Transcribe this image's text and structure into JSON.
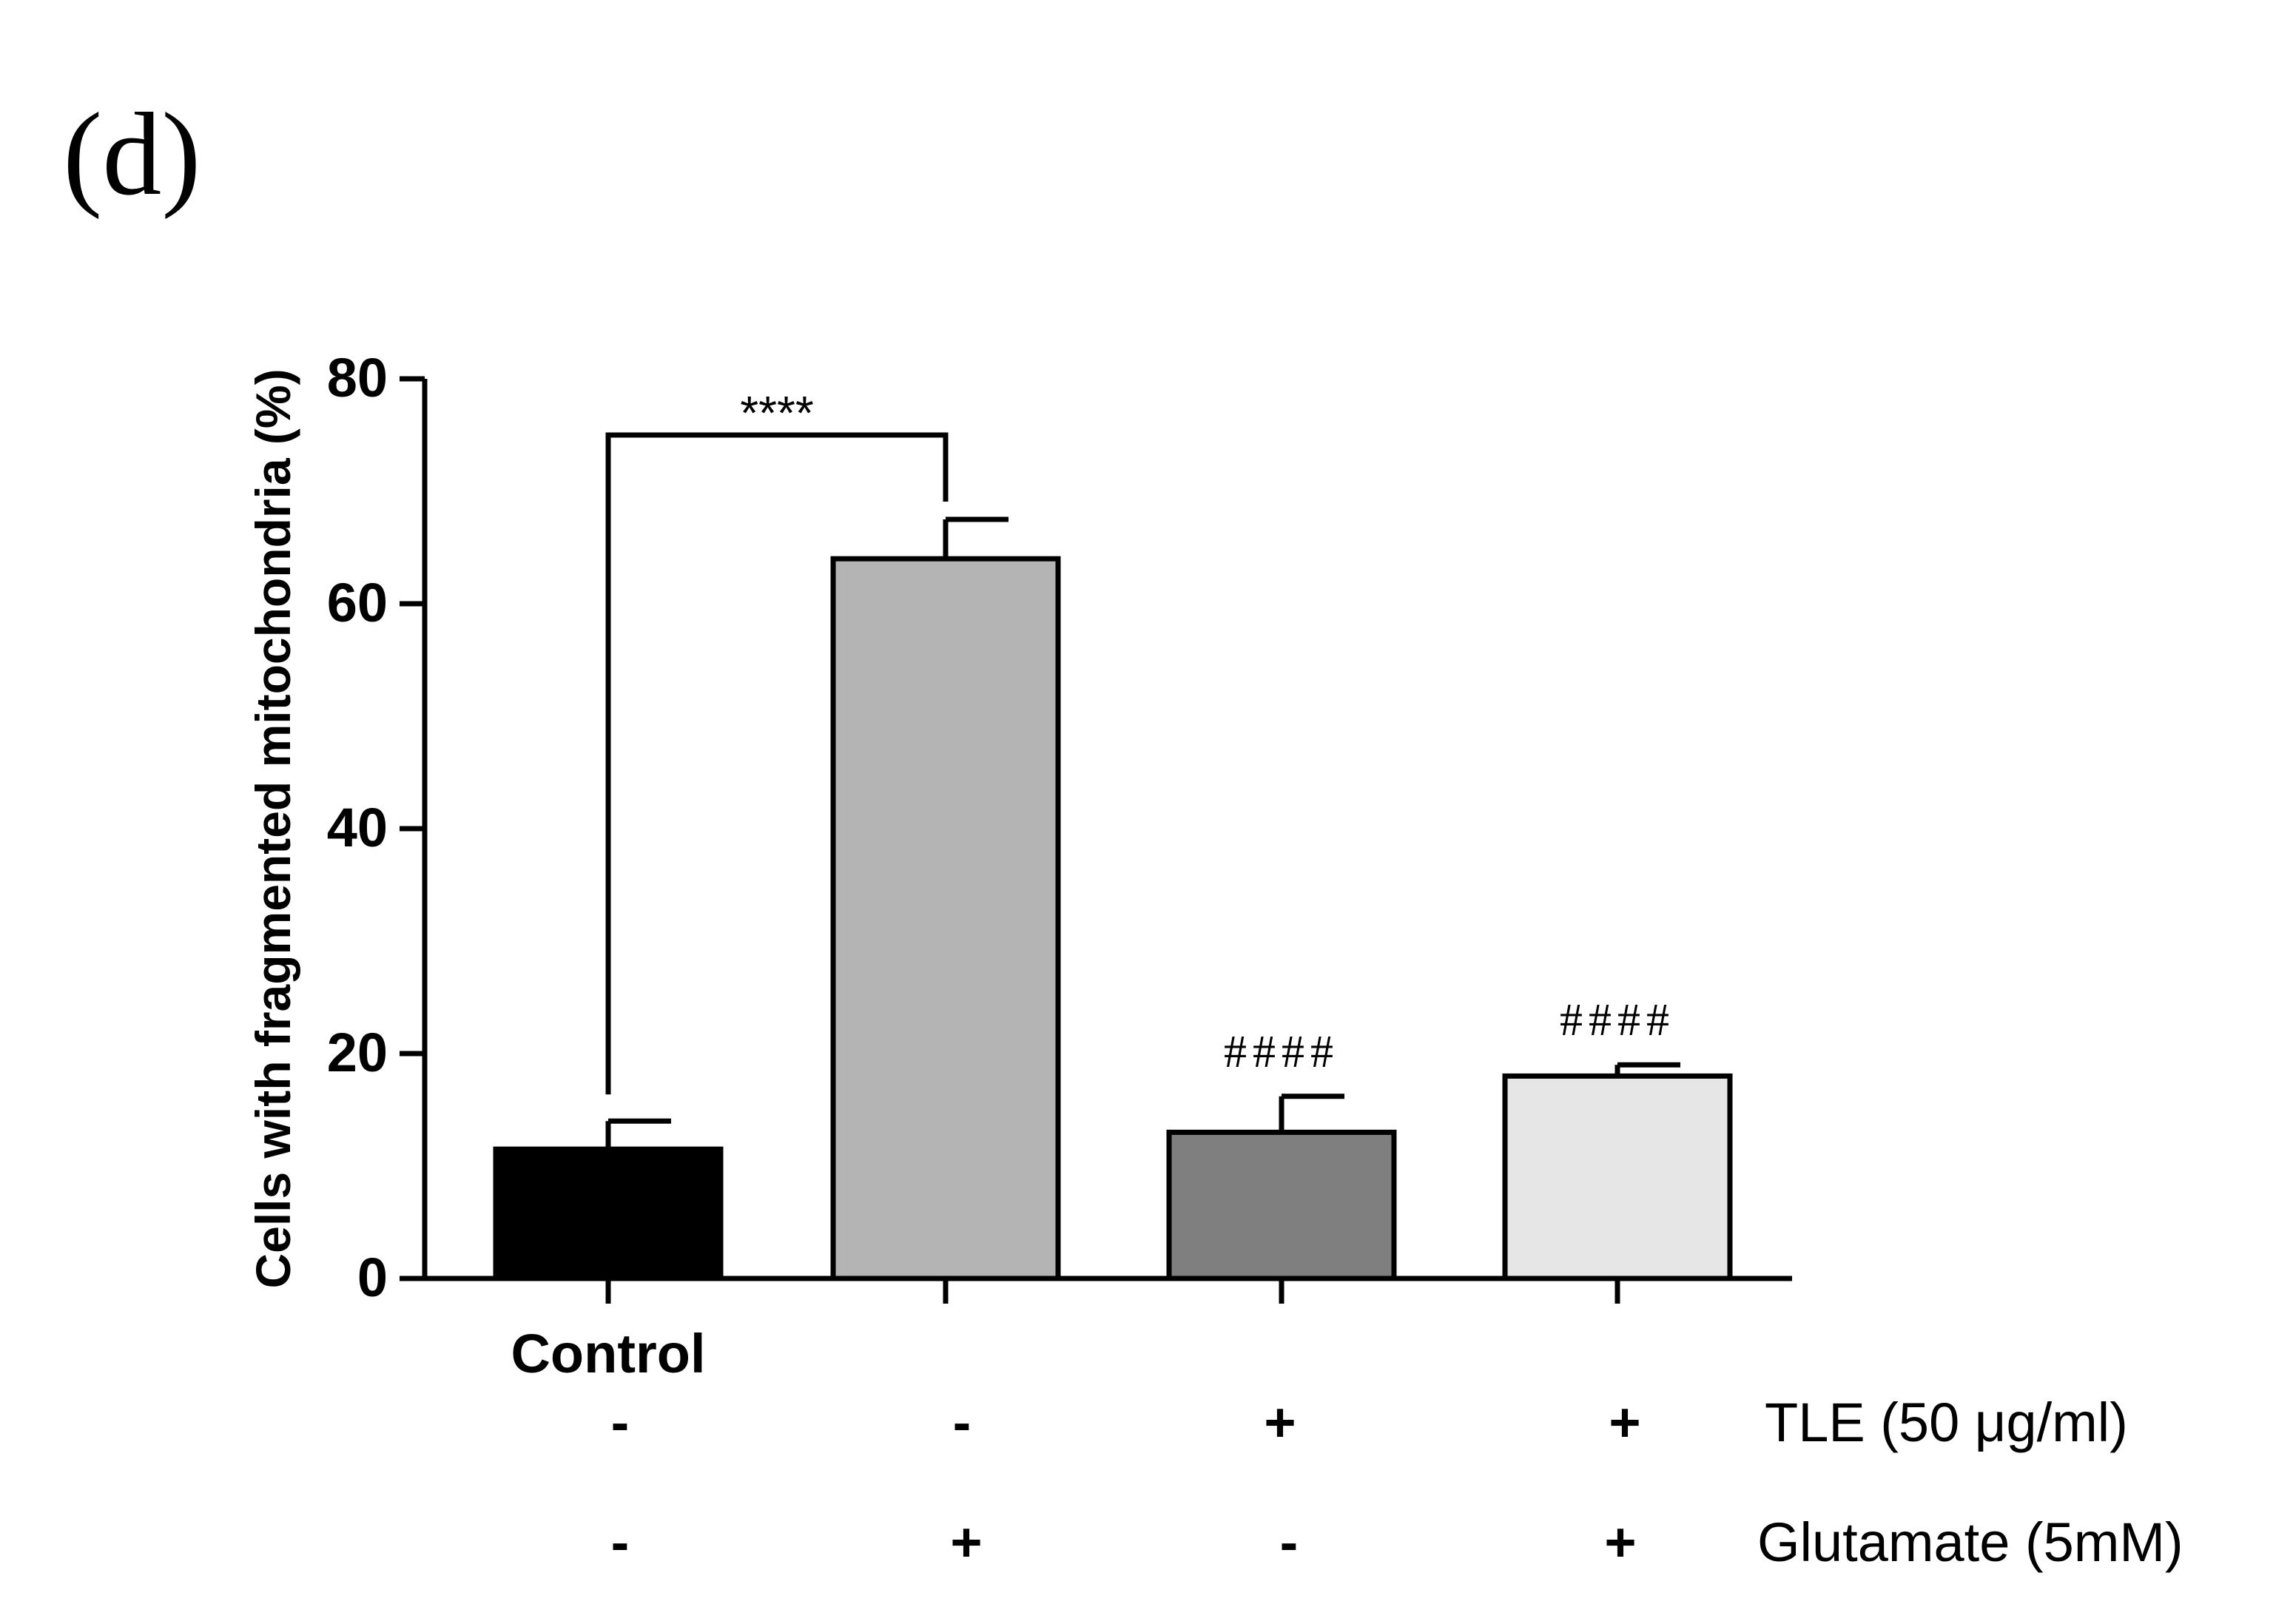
{
  "panel_label": "(d)",
  "chart_data": {
    "type": "bar",
    "title": "",
    "xlabel": "",
    "ylabel": "Cells with fragmented mitochondria (%)",
    "ylim": [
      0,
      80
    ],
    "yticks": [
      "0",
      "20",
      "40",
      "60",
      "80"
    ],
    "categories": [
      "Control",
      "Glutamate",
      "TLE",
      "TLE + Glutamate"
    ],
    "category_label_shown": "Control",
    "values": [
      11.5,
      64,
      13,
      18
    ],
    "errors": [
      2.5,
      3.5,
      3.2,
      1.0
    ],
    "bar_colors": [
      "#000000",
      "#b4b4b4",
      "#7f7f7f",
      "#e6e6e6"
    ],
    "significance": {
      "bracket": {
        "from": 0,
        "to": 1,
        "label": "****",
        "y": 75
      },
      "markers": [
        {
          "bar": 2,
          "label": "####"
        },
        {
          "bar": 3,
          "label": "####"
        }
      ]
    },
    "treatment_rows": [
      {
        "label": "TLE (50 μg/ml)",
        "signs": [
          "-",
          "-",
          "+",
          "+"
        ]
      },
      {
        "label": "Glutamate (5mM)",
        "signs": [
          "-",
          "+",
          "-",
          "+"
        ]
      }
    ]
  }
}
